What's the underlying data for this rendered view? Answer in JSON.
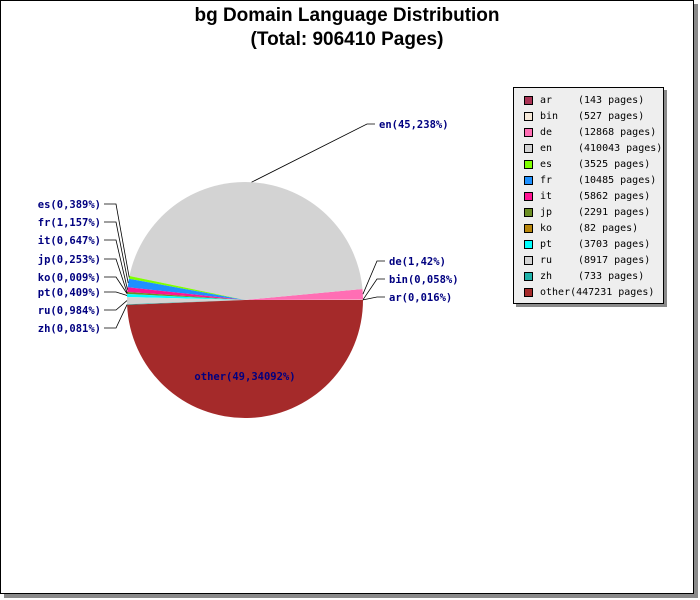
{
  "title": {
    "line1": "bg Domain Language Distribution",
    "line2": "(Total: 906410 Pages)"
  },
  "chart_data": {
    "type": "pie",
    "title": "bg Domain Language Distribution",
    "subtitle": "(Total: 906410 Pages)",
    "legend_position": "right",
    "slices": [
      {
        "code": "ar",
        "pages": 143,
        "legend": "(143 pages)",
        "label": "ar(0,016%)",
        "color": "#aa3355"
      },
      {
        "code": "bin",
        "pages": 527,
        "legend": "(527 pages)",
        "label": "bin(0,058%)",
        "color": "#f5e8d8"
      },
      {
        "code": "de",
        "pages": 12868,
        "legend": "(12868 pages)",
        "label": "de(1,42%)",
        "color": "#ff6eb4"
      },
      {
        "code": "en",
        "pages": 410043,
        "legend": "(410043 pages)",
        "label": "en(45,238%)",
        "color": "#d3d3d3"
      },
      {
        "code": "es",
        "pages": 3525,
        "legend": "(3525 pages)",
        "label": "es(0,389%)",
        "color": "#7fff00"
      },
      {
        "code": "fr",
        "pages": 10485,
        "legend": "(10485 pages)",
        "label": "fr(1,157%)",
        "color": "#1e90ff"
      },
      {
        "code": "it",
        "pages": 5862,
        "legend": "(5862 pages)",
        "label": "it(0,647%)",
        "color": "#ff1493"
      },
      {
        "code": "jp",
        "pages": 2291,
        "legend": "(2291 pages)",
        "label": "jp(0,253%)",
        "color": "#6b8e23"
      },
      {
        "code": "ko",
        "pages": 82,
        "legend": "(82 pages)",
        "label": "ko(0,009%)",
        "color": "#b8860b"
      },
      {
        "code": "pt",
        "pages": 3703,
        "legend": "(3703 pages)",
        "label": "pt(0,409%)",
        "color": "#00ffff"
      },
      {
        "code": "ru",
        "pages": 8917,
        "legend": "(8917 pages)",
        "label": "ru(0,984%)",
        "color": "#d3d3d3"
      },
      {
        "code": "zh",
        "pages": 733,
        "legend": "(733 pages)",
        "label": "zh(0,081%)",
        "color": "#20b2aa"
      },
      {
        "code": "other",
        "pages": 447231,
        "legend": "other(447231 pages)",
        "label": "other(49,34092%)",
        "color": "#a52a2a"
      }
    ]
  }
}
